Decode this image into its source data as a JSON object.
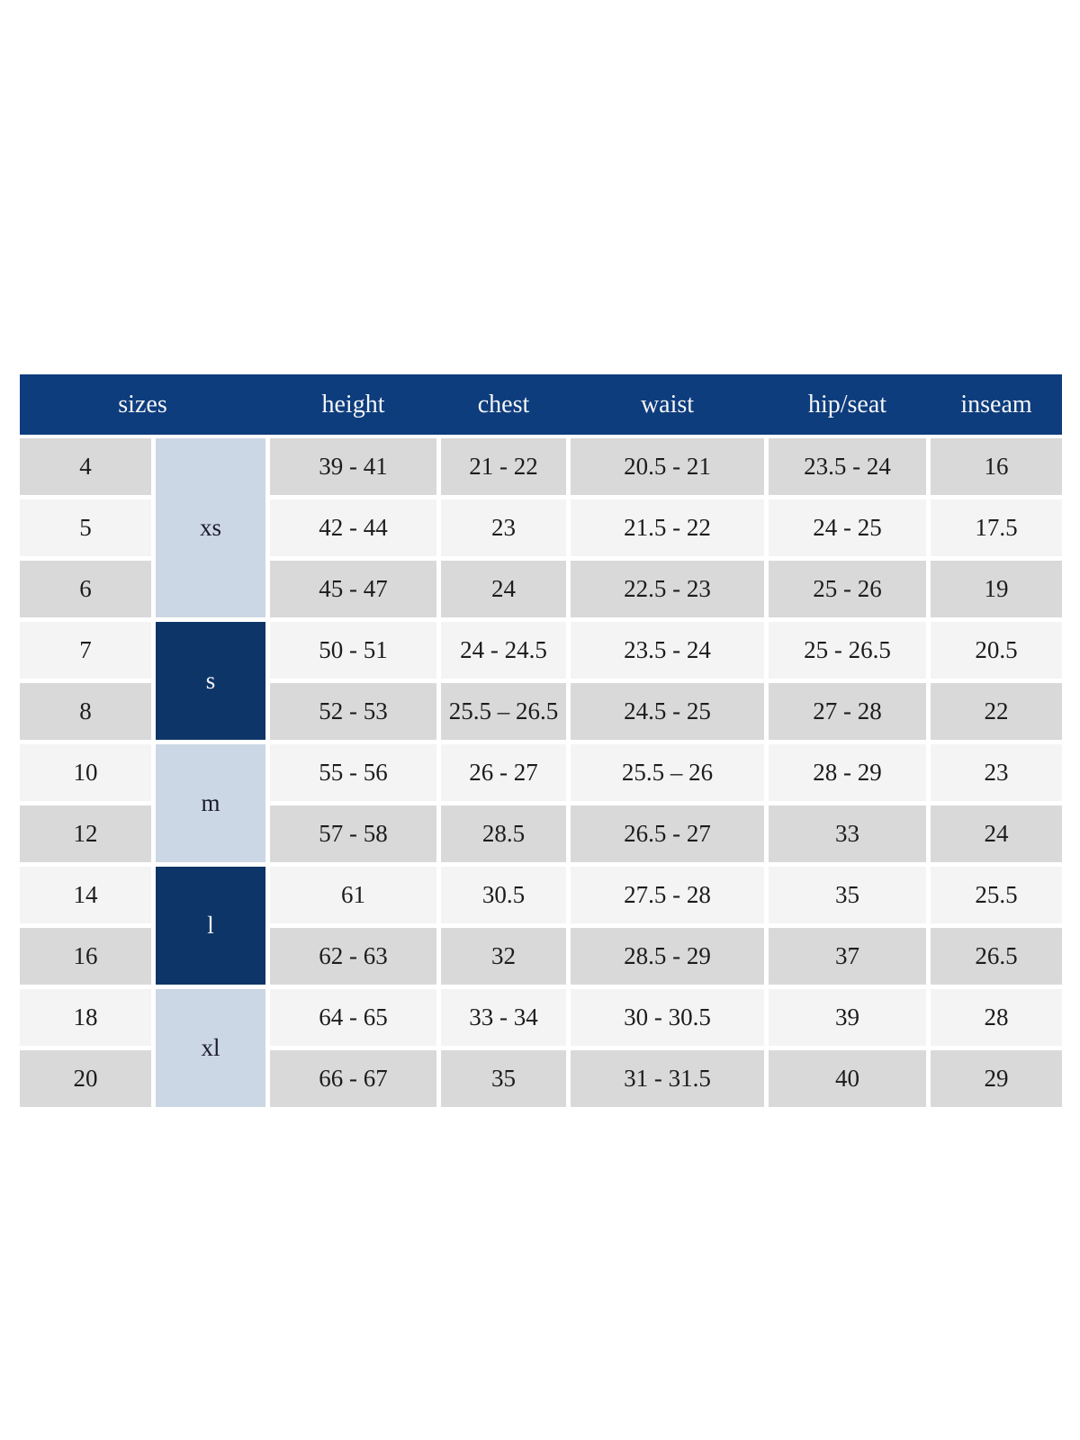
{
  "colors": {
    "page_background": "#FFFFFF",
    "header_background": "#0E3D7D",
    "header_text": "#F5F6F8",
    "group_cell_dark": "#0D3568",
    "group_cell_light": "#CCD7E5",
    "row_gray": "#D9D9D9",
    "row_light": "#F4F4F5",
    "cell_text": "#1C1C1C"
  },
  "chart_data": {
    "type": "table",
    "columns": [
      "sizes",
      "height",
      "chest",
      "waist",
      "hip/seat",
      "inseam"
    ],
    "layout": {
      "header_position": "top",
      "grouped_column": "sizes",
      "row_striping": "alternating gray / light"
    },
    "size_groups": [
      {
        "label": "xs",
        "row_span": 3,
        "style": "light"
      },
      {
        "label": "s",
        "row_span": 2,
        "style": "dark"
      },
      {
        "label": "m",
        "row_span": 2,
        "style": "light"
      },
      {
        "label": "l",
        "row_span": 2,
        "style": "dark"
      },
      {
        "label": "xl",
        "row_span": 2,
        "style": "light"
      }
    ],
    "rows": [
      {
        "size": "4",
        "group": "xs",
        "height": "39 - 41",
        "chest": "21 - 22",
        "waist": "20.5 - 21",
        "hip_seat": "23.5 - 24",
        "inseam": "16"
      },
      {
        "size": "5",
        "group": "xs",
        "height": "42 - 44",
        "chest": "23",
        "waist": "21.5 - 22",
        "hip_seat": "24 - 25",
        "inseam": "17.5"
      },
      {
        "size": "6",
        "group": "xs",
        "height": "45 - 47",
        "chest": "24",
        "waist": "22.5 - 23",
        "hip_seat": "25 - 26",
        "inseam": "19"
      },
      {
        "size": "7",
        "group": "s",
        "height": "50 - 51",
        "chest": "24 - 24.5",
        "waist": "23.5 - 24",
        "hip_seat": "25 - 26.5",
        "inseam": "20.5"
      },
      {
        "size": "8",
        "group": "s",
        "height": "52 - 53",
        "chest": "25.5 – 26.5",
        "waist": "24.5 - 25",
        "hip_seat": "27 - 28",
        "inseam": "22"
      },
      {
        "size": "10",
        "group": "m",
        "height": "55 - 56",
        "chest": "26 - 27",
        "waist": "25.5 – 26",
        "hip_seat": "28 - 29",
        "inseam": "23"
      },
      {
        "size": "12",
        "group": "m",
        "height": "57 - 58",
        "chest": "28.5",
        "waist": "26.5 - 27",
        "hip_seat": "33",
        "inseam": "24"
      },
      {
        "size": "14",
        "group": "l",
        "height": "61",
        "chest": "30.5",
        "waist": "27.5 - 28",
        "hip_seat": "35",
        "inseam": "25.5"
      },
      {
        "size": "16",
        "group": "l",
        "height": "62 - 63",
        "chest": "32",
        "waist": "28.5 - 29",
        "hip_seat": "37",
        "inseam": "26.5"
      },
      {
        "size": "18",
        "group": "xl",
        "height": "64 - 65",
        "chest": "33 - 34",
        "waist": "30 - 30.5",
        "hip_seat": "39",
        "inseam": "28"
      },
      {
        "size": "20",
        "group": "xl",
        "height": "66 - 67",
        "chest": "35",
        "waist": "31 - 31.5",
        "hip_seat": "40",
        "inseam": "29"
      }
    ]
  }
}
